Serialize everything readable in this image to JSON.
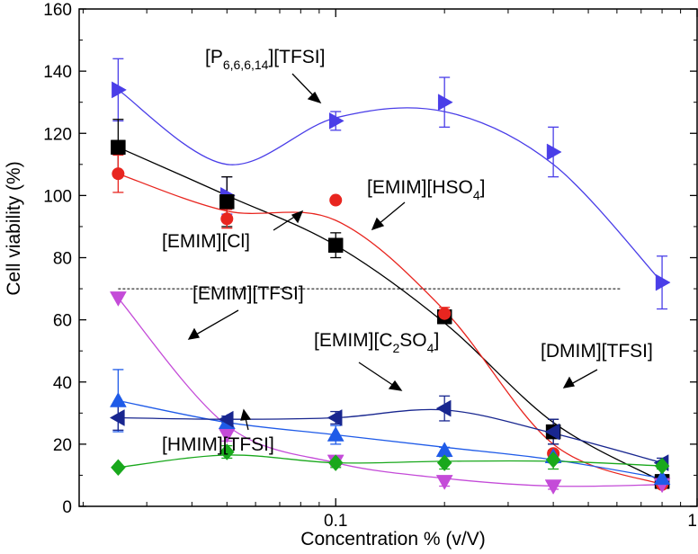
{
  "chart_data": {
    "type": "scatter",
    "xlabel": "Concentration % (v/V)",
    "ylabel": "Cell viability (%)",
    "xscale": "log",
    "xlim": [
      0.0195,
      1.0
    ],
    "ylim": [
      0,
      160
    ],
    "x_ticks": [
      {
        "value": 0.1,
        "label": "0.1"
      },
      {
        "value": 1,
        "label": "1"
      }
    ],
    "y_ticks": [
      {
        "value": 0,
        "label": "0"
      },
      {
        "value": 20,
        "label": "20"
      },
      {
        "value": 40,
        "label": "40"
      },
      {
        "value": 60,
        "label": "60"
      },
      {
        "value": 80,
        "label": "80"
      },
      {
        "value": 100,
        "label": "100"
      },
      {
        "value": 120,
        "label": "120"
      },
      {
        "value": 140,
        "label": "140"
      },
      {
        "value": 160,
        "label": "160"
      }
    ],
    "reference_line": {
      "y": 70,
      "x_range": [
        0.025,
        0.75
      ],
      "style": "dashed"
    },
    "series": [
      {
        "name": "[P6,6,6,14][TFSI]",
        "label_main": "[P",
        "label_sub": "6,6,6,14",
        "label_tail": "][TFSI]",
        "color": "#4a3ee8",
        "marker": "triangle-right",
        "x": [
          0.025,
          0.05,
          0.1,
          0.2,
          0.4,
          0.8
        ],
        "y": [
          134,
          100,
          124,
          130,
          114,
          72
        ],
        "err": [
          10,
          6,
          3,
          8,
          8,
          8.5
        ],
        "fit": [
          134,
          110,
          125,
          127,
          110,
          72
        ]
      },
      {
        "name": "[EMIM][Cl]",
        "label_main": "[EMIM][Cl]",
        "color": "#000000",
        "marker": "square",
        "x": [
          0.025,
          0.05,
          0.1,
          0.2,
          0.4,
          0.8
        ],
        "y": [
          115.5,
          98,
          84,
          61,
          24,
          8
        ],
        "err": [
          9,
          8,
          4,
          1.5,
          4,
          1
        ],
        "fit": [
          115.5,
          100,
          84,
          59,
          27,
          8
        ]
      },
      {
        "name": "[EMIM][HSO4]",
        "label_main": "[EMIM][HSO",
        "label_sub": "4",
        "label_tail": "]",
        "color": "#e8251f",
        "marker": "circle",
        "x": [
          0.025,
          0.05,
          0.1,
          0.2,
          0.4,
          0.8
        ],
        "y": [
          107,
          92.5,
          98.5,
          62,
          17,
          7
        ],
        "err": [
          6,
          3,
          0,
          2,
          0,
          1
        ],
        "fit": [
          107,
          95,
          92,
          63,
          20,
          7
        ]
      },
      {
        "name": "[EMIM][TFSI]",
        "label_main": "[EMIM][TFSI]",
        "color": "#c44bd8",
        "marker": "triangle-down",
        "x": [
          0.025,
          0.05,
          0.1,
          0.2,
          0.4,
          0.8
        ],
        "y": [
          67,
          23,
          14.5,
          8,
          6.5,
          7
        ],
        "err": [
          0,
          2,
          1.5,
          1.5,
          1,
          1
        ],
        "fit": [
          67,
          26,
          14,
          9,
          6.5,
          7
        ]
      },
      {
        "name": "[EMIM][C2SO4]",
        "label_main": "[EMIM][C",
        "label_sub": "2",
        "label_tail": "SO",
        "label_sub2": "4",
        "label_tail2": "]",
        "color": "#1f5be8",
        "marker": "triangle-up",
        "x": [
          0.025,
          0.05,
          0.1,
          0.2,
          0.4,
          0.8
        ],
        "y": [
          34,
          27,
          23,
          18,
          16,
          9
        ],
        "err": [
          10,
          2,
          3,
          1,
          2,
          1
        ],
        "fit": [
          34,
          27,
          23,
          19,
          15,
          9
        ]
      },
      {
        "name": "[DMIM][TFSI]",
        "label_main": "[DMIM][TFSI]",
        "color": "#18268f",
        "marker": "triangle-left",
        "x": [
          0.025,
          0.05,
          0.1,
          0.2,
          0.4,
          0.8
        ],
        "y": [
          28.5,
          28,
          28.5,
          31.5,
          24,
          14
        ],
        "err": [
          4,
          1,
          2,
          4,
          4,
          1.5
        ],
        "fit": [
          28.5,
          28,
          28.5,
          31,
          23.5,
          14
        ]
      },
      {
        "name": "[HMIM][TFSI]",
        "label_main": "[HMIM][TFSI]",
        "color": "#19a81c",
        "marker": "diamond",
        "x": [
          0.025,
          0.05,
          0.1,
          0.2,
          0.4,
          0.8
        ],
        "y": [
          12.5,
          17.5,
          14,
          14,
          15,
          13
        ],
        "err": [
          0,
          2,
          1.5,
          2,
          3,
          1
        ],
        "fit": [
          12.5,
          16.5,
          14,
          14.5,
          14.5,
          13
        ]
      }
    ]
  }
}
